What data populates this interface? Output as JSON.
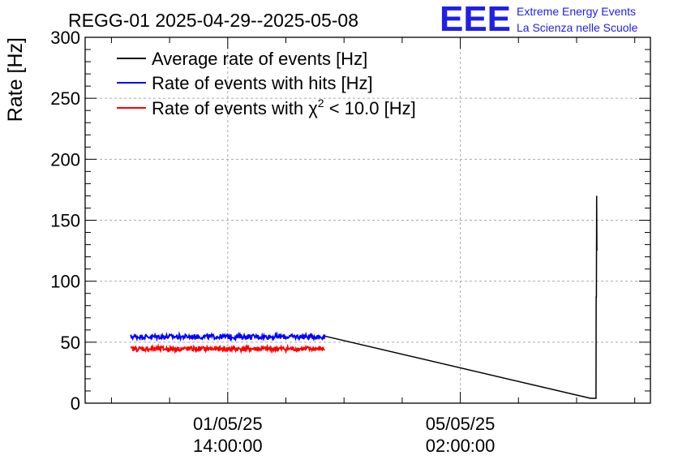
{
  "header": {
    "title": "REGG-01 2025-04-29--2025-05-08",
    "logo_text": "EEE",
    "logo_line1": "Extreme Energy Events",
    "logo_line2": "La Scienza nelle Scuole"
  },
  "colors": {
    "logo": "#1f1fe6",
    "average": "#000000",
    "hits": "#0000ff",
    "chi2": "#ff0000",
    "grid": "#aaaaaa",
    "axis": "#000000"
  },
  "chart_data": {
    "type": "line",
    "title": "REGG-01 2025-04-29--2025-05-08",
    "xlabel": "",
    "ylabel": "Rate [Hz]",
    "ylim": [
      0,
      300
    ],
    "xlim": [
      "2025-04-29 10:30",
      "2025-05-07 22:40"
    ],
    "grid": true,
    "legend_position": "top-left",
    "x_ticks": [
      {
        "date": "01/05/25",
        "time": "14:00:00",
        "at": "2025-05-01 14:00"
      },
      {
        "date": "05/05/25",
        "time": "02:00:00",
        "at": "2025-05-05 02:00"
      }
    ],
    "y_ticks": [
      0,
      50,
      100,
      150,
      200,
      250,
      300
    ],
    "series": [
      {
        "key": "average",
        "name": "Average rate of events [Hz]",
        "color": "#000000",
        "x": [
          "2025-05-03 01:00",
          "2025-05-07 01:00",
          "2025-05-07 03:00",
          "2025-05-07 03:05",
          "2025-05-07 03:10",
          "2025-05-07 03:15",
          "2025-05-07 03:20"
        ],
        "y": [
          55,
          4,
          4,
          87,
          87,
          170,
          125
        ]
      },
      {
        "key": "hits",
        "name": "Rate of events with hits [Hz]",
        "color": "#0000ff",
        "x_start": "2025-04-30 03:00",
        "x_end": "2025-05-03 01:00",
        "mean": 54.5,
        "spread": 2
      },
      {
        "key": "chi2",
        "name": "Rate of events with χ² < 10.0 [Hz]",
        "name_prefix": "Rate of events with ",
        "chi_symbol": "χ",
        "chi_exponent": "2",
        "name_suffix": " < 10.0 [Hz]",
        "color": "#ff0000",
        "x_start": "2025-04-30 03:00",
        "x_end": "2025-05-03 01:00",
        "mean": 44.5,
        "spread": 2
      }
    ]
  }
}
